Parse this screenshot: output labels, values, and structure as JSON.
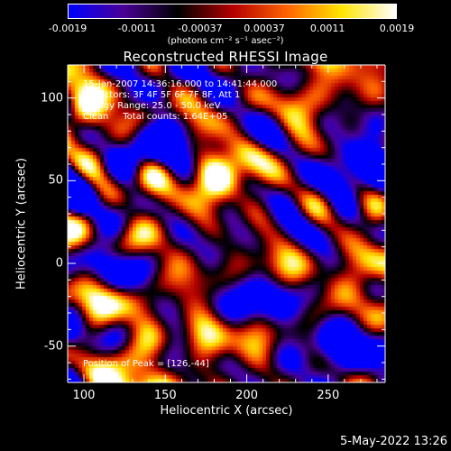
{
  "chart_data": {
    "type": "heatmap",
    "title": "Reconstructed RHESSI Image",
    "xlabel": "Heliocentric X (arcsec)",
    "ylabel": "Heliocentric Y (arcsec)",
    "xlim": [
      90,
      285
    ],
    "ylim": [
      -72,
      120
    ],
    "x_ticks": [
      "100",
      "150",
      "200",
      "250"
    ],
    "x_tick_values": [
      100,
      150,
      200,
      250
    ],
    "y_ticks": [
      "100",
      "50",
      "0",
      "-50"
    ],
    "y_tick_values": [
      100,
      50,
      0,
      -50
    ],
    "colorbar": {
      "ticks": [
        "-0.0019",
        "-0.0011",
        "-0.00037",
        "0.00037",
        "0.0011",
        "0.0019"
      ],
      "tick_values": [
        -0.0019,
        -0.0011,
        -0.00037,
        0.00037,
        0.0011,
        0.0019
      ],
      "range": [
        -0.0019,
        0.0019
      ],
      "units": "(photons cm⁻² s⁻¹ asec⁻²)",
      "colors": [
        "#0000ff",
        "#4b0096",
        "#000000",
        "#b40000",
        "#ff6400",
        "#ffe600",
        "#ffffff"
      ]
    },
    "bright_sources": [
      {
        "x": 125,
        "y": -55,
        "value": 0.0019
      },
      {
        "x": 132,
        "y": 10,
        "value": 0.0016
      },
      {
        "x": 185,
        "y": 45,
        "value": 0.0018
      },
      {
        "x": 178,
        "y": 78,
        "value": 0.0013
      },
      {
        "x": 245,
        "y": 100,
        "value": 0.0015
      },
      {
        "x": 105,
        "y": 95,
        "value": 0.0011
      },
      {
        "x": 270,
        "y": 0,
        "value": 0.001
      },
      {
        "x": 225,
        "y": 5,
        "value": 0.0009
      },
      {
        "x": 95,
        "y": 55,
        "value": 0.0008
      },
      {
        "x": 160,
        "y": -25,
        "value": 0.0007
      }
    ],
    "dim_regions": [
      {
        "x": 150,
        "y": 60,
        "value": -0.0012
      },
      {
        "x": 205,
        "y": 70,
        "value": -0.0013
      },
      {
        "x": 255,
        "y": 40,
        "value": -0.0012
      },
      {
        "x": 200,
        "y": -40,
        "value": -0.0011
      },
      {
        "x": 260,
        "y": -55,
        "value": -0.001
      },
      {
        "x": 120,
        "y": 25,
        "value": -0.0009
      }
    ],
    "annotations": {
      "line1": "15-Jan-2007 14:36:16.000 to 14:41:44.000",
      "line2": "Detectors: 3F 4F 5F 6F 7F 8F, Att 1",
      "line3": "Energy Range: 25.0 - 50.0 keV",
      "line4": "Clean     Total counts: 1.64E+05",
      "peak": "Position of Peak = [126,-44]"
    }
  },
  "footer": {
    "date": "5-May-2022 13:26"
  }
}
